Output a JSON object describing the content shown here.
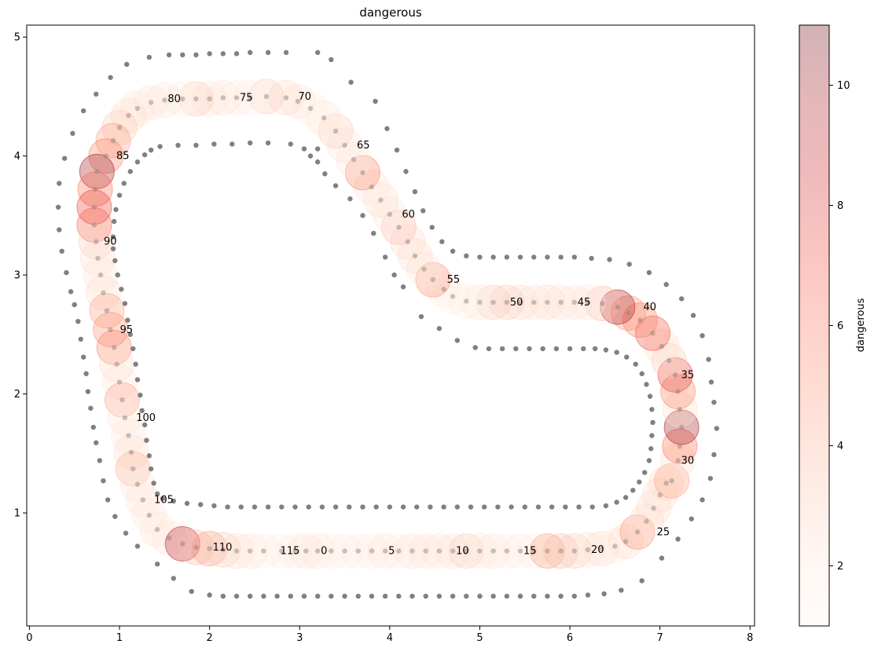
{
  "chart_data": {
    "type": "scatter",
    "title": "dangerous",
    "xlabel": "",
    "ylabel": "",
    "xlim": [
      -0.03,
      8.05
    ],
    "ylim": [
      0.05,
      5.1
    ],
    "xticks": [
      0,
      1,
      2,
      3,
      4,
      5,
      6,
      7,
      8
    ],
    "yticks": [
      1,
      2,
      3,
      4,
      5
    ],
    "grid": false,
    "colorbar": {
      "label": "dangerous",
      "min": 1,
      "max": 11,
      "ticks": [
        2,
        4,
        6,
        8,
        10
      ],
      "colormap": "Reds",
      "alpha": 0.3
    },
    "track_border_color": "#808080",
    "outer_border": [
      [
        3.2,
        4.87
      ],
      [
        2.85,
        4.87
      ],
      [
        2.65,
        4.87
      ],
      [
        2.45,
        4.87
      ],
      [
        2.3,
        4.86
      ],
      [
        2.15,
        4.86
      ],
      [
        2.0,
        4.86
      ],
      [
        1.85,
        4.85
      ],
      [
        1.7,
        4.85
      ],
      [
        1.55,
        4.85
      ],
      [
        1.33,
        4.83
      ],
      [
        1.08,
        4.77
      ],
      [
        0.9,
        4.66
      ],
      [
        0.74,
        4.52
      ],
      [
        0.6,
        4.38
      ],
      [
        0.48,
        4.19
      ],
      [
        0.39,
        3.98
      ],
      [
        0.33,
        3.77
      ],
      [
        0.32,
        3.57
      ],
      [
        0.33,
        3.38
      ],
      [
        0.36,
        3.2
      ],
      [
        0.41,
        3.02
      ],
      [
        0.46,
        2.86
      ],
      [
        0.5,
        2.75
      ],
      [
        0.54,
        2.61
      ],
      [
        0.57,
        2.46
      ],
      [
        0.6,
        2.31
      ],
      [
        0.63,
        2.17
      ],
      [
        0.65,
        2.02
      ],
      [
        0.68,
        1.88
      ],
      [
        0.71,
        1.72
      ],
      [
        0.74,
        1.59
      ],
      [
        0.78,
        1.44
      ],
      [
        0.82,
        1.27
      ],
      [
        0.87,
        1.11
      ],
      [
        0.95,
        0.97
      ],
      [
        1.07,
        0.83
      ],
      [
        1.2,
        0.72
      ],
      [
        1.42,
        0.57
      ],
      [
        1.6,
        0.45
      ],
      [
        1.8,
        0.34
      ],
      [
        2.0,
        0.31
      ],
      [
        2.15,
        0.3
      ],
      [
        2.3,
        0.3
      ],
      [
        2.45,
        0.3
      ],
      [
        2.6,
        0.3
      ],
      [
        2.75,
        0.3
      ],
      [
        2.9,
        0.3
      ],
      [
        3.05,
        0.3
      ],
      [
        3.2,
        0.3
      ],
      [
        3.35,
        0.3
      ],
      [
        3.5,
        0.3
      ],
      [
        3.65,
        0.3
      ],
      [
        3.8,
        0.3
      ],
      [
        3.95,
        0.3
      ],
      [
        4.1,
        0.3
      ],
      [
        4.25,
        0.3
      ],
      [
        4.4,
        0.3
      ],
      [
        4.55,
        0.3
      ],
      [
        4.7,
        0.3
      ],
      [
        4.85,
        0.3
      ],
      [
        5.0,
        0.3
      ],
      [
        5.15,
        0.3
      ],
      [
        5.3,
        0.3
      ],
      [
        5.45,
        0.3
      ],
      [
        5.6,
        0.3
      ],
      [
        5.75,
        0.3
      ],
      [
        5.9,
        0.3
      ],
      [
        6.05,
        0.3
      ],
      [
        6.2,
        0.31
      ],
      [
        6.38,
        0.32
      ],
      [
        6.57,
        0.35
      ],
      [
        6.8,
        0.43
      ],
      [
        7.02,
        0.62
      ],
      [
        7.2,
        0.78
      ],
      [
        7.35,
        0.95
      ],
      [
        7.47,
        1.11
      ],
      [
        7.56,
        1.29
      ],
      [
        7.6,
        1.49
      ],
      [
        7.63,
        1.71
      ],
      [
        7.6,
        1.93
      ],
      [
        7.57,
        2.1
      ],
      [
        7.54,
        2.29
      ],
      [
        7.47,
        2.49
      ],
      [
        7.37,
        2.66
      ],
      [
        7.24,
        2.8
      ],
      [
        7.07,
        2.92
      ],
      [
        6.88,
        3.02
      ],
      [
        6.66,
        3.09
      ],
      [
        6.44,
        3.13
      ],
      [
        6.24,
        3.14
      ],
      [
        6.05,
        3.15
      ],
      [
        5.9,
        3.15
      ],
      [
        5.75,
        3.15
      ],
      [
        5.6,
        3.15
      ],
      [
        5.45,
        3.15
      ],
      [
        5.3,
        3.15
      ],
      [
        5.15,
        3.15
      ],
      [
        5.0,
        3.15
      ],
      [
        4.85,
        3.16
      ],
      [
        4.7,
        3.2
      ],
      [
        4.58,
        3.28
      ],
      [
        4.47,
        3.4
      ],
      [
        4.37,
        3.54
      ],
      [
        4.28,
        3.7
      ],
      [
        4.18,
        3.87
      ],
      [
        4.08,
        4.05
      ],
      [
        3.97,
        4.23
      ],
      [
        3.84,
        4.46
      ],
      [
        3.57,
        4.62
      ],
      [
        3.35,
        4.81
      ]
    ],
    "inner_border": [
      [
        3.2,
        4.06
      ],
      [
        2.9,
        4.1
      ],
      [
        2.65,
        4.11
      ],
      [
        2.45,
        4.11
      ],
      [
        2.25,
        4.1
      ],
      [
        2.05,
        4.1
      ],
      [
        1.85,
        4.09
      ],
      [
        1.65,
        4.09
      ],
      [
        1.45,
        4.08
      ],
      [
        1.35,
        4.05
      ],
      [
        1.28,
        4.01
      ],
      [
        1.2,
        3.95
      ],
      [
        1.12,
        3.87
      ],
      [
        1.05,
        3.77
      ],
      [
        1.0,
        3.67
      ],
      [
        0.96,
        3.55
      ],
      [
        0.94,
        3.45
      ],
      [
        0.93,
        3.32
      ],
      [
        0.93,
        3.22
      ],
      [
        0.95,
        3.12
      ],
      [
        0.98,
        3.0
      ],
      [
        1.02,
        2.88
      ],
      [
        1.06,
        2.76
      ],
      [
        1.09,
        2.62
      ],
      [
        1.12,
        2.5
      ],
      [
        1.15,
        2.38
      ],
      [
        1.18,
        2.25
      ],
      [
        1.2,
        2.12
      ],
      [
        1.23,
        1.99
      ],
      [
        1.25,
        1.86
      ],
      [
        1.28,
        1.74
      ],
      [
        1.3,
        1.61
      ],
      [
        1.33,
        1.48
      ],
      [
        1.35,
        1.37
      ],
      [
        1.38,
        1.25
      ],
      [
        1.42,
        1.16
      ],
      [
        1.48,
        1.12
      ],
      [
        1.6,
        1.1
      ],
      [
        1.75,
        1.08
      ],
      [
        1.9,
        1.07
      ],
      [
        2.05,
        1.06
      ],
      [
        2.2,
        1.05
      ],
      [
        2.35,
        1.05
      ],
      [
        2.5,
        1.05
      ],
      [
        2.65,
        1.05
      ],
      [
        2.8,
        1.05
      ],
      [
        2.95,
        1.05
      ],
      [
        3.1,
        1.05
      ],
      [
        3.25,
        1.05
      ],
      [
        3.4,
        1.05
      ],
      [
        3.55,
        1.05
      ],
      [
        3.7,
        1.05
      ],
      [
        3.85,
        1.05
      ],
      [
        4.0,
        1.05
      ],
      [
        4.15,
        1.05
      ],
      [
        4.3,
        1.05
      ],
      [
        4.45,
        1.05
      ],
      [
        4.6,
        1.05
      ],
      [
        4.75,
        1.05
      ],
      [
        4.9,
        1.05
      ],
      [
        5.05,
        1.05
      ],
      [
        5.2,
        1.05
      ],
      [
        5.35,
        1.05
      ],
      [
        5.5,
        1.05
      ],
      [
        5.65,
        1.05
      ],
      [
        5.8,
        1.05
      ],
      [
        5.95,
        1.05
      ],
      [
        6.1,
        1.05
      ],
      [
        6.25,
        1.05
      ],
      [
        6.4,
        1.06
      ],
      [
        6.52,
        1.09
      ],
      [
        6.62,
        1.13
      ],
      [
        6.7,
        1.19
      ],
      [
        6.77,
        1.26
      ],
      [
        6.83,
        1.34
      ],
      [
        6.88,
        1.44
      ],
      [
        6.9,
        1.54
      ],
      [
        6.91,
        1.65
      ],
      [
        6.92,
        1.76
      ],
      [
        6.91,
        1.87
      ],
      [
        6.89,
        1.98
      ],
      [
        6.85,
        2.08
      ],
      [
        6.8,
        2.17
      ],
      [
        6.73,
        2.25
      ],
      [
        6.63,
        2.31
      ],
      [
        6.52,
        2.35
      ],
      [
        6.4,
        2.37
      ],
      [
        6.28,
        2.38
      ],
      [
        6.15,
        2.38
      ],
      [
        6.0,
        2.38
      ],
      [
        5.85,
        2.38
      ],
      [
        5.7,
        2.38
      ],
      [
        5.55,
        2.38
      ],
      [
        5.4,
        2.38
      ],
      [
        5.25,
        2.38
      ],
      [
        5.1,
        2.38
      ],
      [
        4.95,
        2.39
      ],
      [
        4.75,
        2.45
      ],
      [
        4.55,
        2.55
      ],
      [
        4.35,
        2.65
      ],
      [
        4.15,
        2.9
      ],
      [
        4.05,
        3.0
      ],
      [
        3.95,
        3.15
      ],
      [
        3.82,
        3.35
      ],
      [
        3.7,
        3.5
      ],
      [
        3.56,
        3.64
      ],
      [
        3.4,
        3.75
      ],
      [
        3.28,
        3.85
      ],
      [
        3.2,
        3.95
      ],
      [
        3.12,
        4.0
      ],
      [
        3.05,
        4.06
      ]
    ],
    "waypoints": [
      [
        3.2,
        0.68,
        2.0
      ],
      [
        3.35,
        0.68,
        1.5
      ],
      [
        3.5,
        0.68,
        1.5
      ],
      [
        3.65,
        0.68,
        1.5
      ],
      [
        3.8,
        0.68,
        1.5
      ],
      [
        3.95,
        0.68,
        2.0
      ],
      [
        4.1,
        0.68,
        1.5
      ],
      [
        4.25,
        0.68,
        2.0
      ],
      [
        4.4,
        0.68,
        2.0
      ],
      [
        4.55,
        0.68,
        2.0
      ],
      [
        4.7,
        0.68,
        2.0
      ],
      [
        4.85,
        0.68,
        3.0
      ],
      [
        5.0,
        0.68,
        2.0
      ],
      [
        5.15,
        0.68,
        2.0
      ],
      [
        5.3,
        0.68,
        1.5
      ],
      [
        5.45,
        0.68,
        1.5
      ],
      [
        5.6,
        0.68,
        1.5
      ],
      [
        5.75,
        0.68,
        4.5
      ],
      [
        5.9,
        0.68,
        3.5
      ],
      [
        6.05,
        0.68,
        3.0
      ],
      [
        6.2,
        0.69,
        2.0
      ],
      [
        6.35,
        0.7,
        2.5
      ],
      [
        6.5,
        0.72,
        1.5
      ],
      [
        6.62,
        0.76,
        2.5
      ],
      [
        6.75,
        0.84,
        5.0
      ],
      [
        6.85,
        0.93,
        2.5
      ],
      [
        6.93,
        1.04,
        2.5
      ],
      [
        7.0,
        1.15,
        2.5
      ],
      [
        7.07,
        1.25,
        2.5
      ],
      [
        7.13,
        1.27,
        4.5
      ],
      [
        7.2,
        1.44,
        2.5
      ],
      [
        7.22,
        1.56,
        6.0
      ],
      [
        7.24,
        1.72,
        10.0
      ],
      [
        7.22,
        1.87,
        2.5
      ],
      [
        7.2,
        2.02,
        5.5
      ],
      [
        7.17,
        2.16,
        7.5
      ],
      [
        7.1,
        2.28,
        3.0
      ],
      [
        7.02,
        2.4,
        2.5
      ],
      [
        6.92,
        2.51,
        7.0
      ],
      [
        6.78,
        2.62,
        5.5
      ],
      [
        6.65,
        2.68,
        5.0
      ],
      [
        6.53,
        2.73,
        9.5
      ],
      [
        6.36,
        2.76,
        3.5
      ],
      [
        6.2,
        2.77,
        2.0
      ],
      [
        6.05,
        2.77,
        2.0
      ],
      [
        5.9,
        2.77,
        2.0
      ],
      [
        5.75,
        2.77,
        2.5
      ],
      [
        5.6,
        2.77,
        2.0
      ],
      [
        5.45,
        2.77,
        2.5
      ],
      [
        5.3,
        2.77,
        3.0
      ],
      [
        5.15,
        2.77,
        3.0
      ],
      [
        5.0,
        2.77,
        2.0
      ],
      [
        4.85,
        2.78,
        1.5
      ],
      [
        4.7,
        2.82,
        1.5
      ],
      [
        4.6,
        2.88,
        1.5
      ],
      [
        4.48,
        2.96,
        5.0
      ],
      [
        4.38,
        3.05,
        2.0
      ],
      [
        4.28,
        3.16,
        2.5
      ],
      [
        4.2,
        3.28,
        2.5
      ],
      [
        4.1,
        3.4,
        3.5
      ],
      [
        4.0,
        3.51,
        2.0
      ],
      [
        3.9,
        3.63,
        2.5
      ],
      [
        3.8,
        3.74,
        2.0
      ],
      [
        3.7,
        3.86,
        5.5
      ],
      [
        3.6,
        3.97,
        2.0
      ],
      [
        3.5,
        4.09,
        2.0
      ],
      [
        3.4,
        4.21,
        3.0
      ],
      [
        3.27,
        4.32,
        2.0
      ],
      [
        3.12,
        4.4,
        1.5
      ],
      [
        2.98,
        4.46,
        2.0
      ],
      [
        2.85,
        4.49,
        2.5
      ],
      [
        2.63,
        4.5,
        3.0
      ],
      [
        2.45,
        4.49,
        1.5
      ],
      [
        2.3,
        4.49,
        1.5
      ],
      [
        2.15,
        4.49,
        2.0
      ],
      [
        2.0,
        4.48,
        2.0
      ],
      [
        1.85,
        4.48,
        3.0
      ],
      [
        1.7,
        4.48,
        1.5
      ],
      [
        1.5,
        4.47,
        2.0
      ],
      [
        1.35,
        4.45,
        2.0
      ],
      [
        1.2,
        4.4,
        2.0
      ],
      [
        1.1,
        4.34,
        2.5
      ],
      [
        1.0,
        4.24,
        3.0
      ],
      [
        0.93,
        4.13,
        4.5
      ],
      [
        0.85,
        4.0,
        5.5
      ],
      [
        0.75,
        3.87,
        10.0
      ],
      [
        0.73,
        3.72,
        6.0
      ],
      [
        0.72,
        3.57,
        7.5
      ],
      [
        0.72,
        3.42,
        6.5
      ],
      [
        0.74,
        3.28,
        3.0
      ],
      [
        0.76,
        3.14,
        2.5
      ],
      [
        0.79,
        3.0,
        2.0
      ],
      [
        0.82,
        2.85,
        2.5
      ],
      [
        0.86,
        2.7,
        4.5
      ],
      [
        0.9,
        2.54,
        5.0
      ],
      [
        0.94,
        2.39,
        5.5
      ],
      [
        0.97,
        2.25,
        2.5
      ],
      [
        1.0,
        2.1,
        2.0
      ],
      [
        1.03,
        1.95,
        4.5
      ],
      [
        1.06,
        1.8,
        2.0
      ],
      [
        1.1,
        1.65,
        2.0
      ],
      [
        1.13,
        1.51,
        2.5
      ],
      [
        1.15,
        1.37,
        4.0
      ],
      [
        1.2,
        1.24,
        2.0
      ],
      [
        1.26,
        1.11,
        2.0
      ],
      [
        1.33,
        0.98,
        2.0
      ],
      [
        1.42,
        0.86,
        2.0
      ],
      [
        1.55,
        0.79,
        2.0
      ],
      [
        1.7,
        0.74,
        9.0
      ],
      [
        1.85,
        0.71,
        3.5
      ],
      [
        2.0,
        0.7,
        4.5
      ],
      [
        2.15,
        0.69,
        3.0
      ],
      [
        2.3,
        0.68,
        2.5
      ],
      [
        2.45,
        0.68,
        2.0
      ],
      [
        2.6,
        0.68,
        1.5
      ],
      [
        2.8,
        0.68,
        1.5
      ],
      [
        2.95,
        0.68,
        1.5
      ],
      [
        3.07,
        0.68,
        2.0
      ]
    ],
    "waypoint_labels": [
      {
        "text": "0",
        "x": 3.2,
        "y": 0.68
      },
      {
        "text": "5",
        "x": 3.95,
        "y": 0.68
      },
      {
        "text": "10",
        "x": 4.7,
        "y": 0.68
      },
      {
        "text": "15",
        "x": 5.45,
        "y": 0.68
      },
      {
        "text": "20",
        "x": 6.2,
        "y": 0.69
      },
      {
        "text": "25",
        "x": 6.93,
        "y": 0.84
      },
      {
        "text": "30",
        "x": 7.2,
        "y": 1.44
      },
      {
        "text": "35",
        "x": 7.2,
        "y": 2.16
      },
      {
        "text": "40",
        "x": 6.78,
        "y": 2.73
      },
      {
        "text": "45",
        "x": 6.05,
        "y": 2.77
      },
      {
        "text": "50",
        "x": 5.3,
        "y": 2.77
      },
      {
        "text": "55",
        "x": 4.6,
        "y": 2.96
      },
      {
        "text": "60",
        "x": 4.1,
        "y": 3.51
      },
      {
        "text": "65",
        "x": 3.6,
        "y": 4.09
      },
      {
        "text": "70",
        "x": 2.95,
        "y": 4.5
      },
      {
        "text": "75",
        "x": 2.3,
        "y": 4.49
      },
      {
        "text": "80",
        "x": 1.5,
        "y": 4.48
      },
      {
        "text": "85",
        "x": 0.93,
        "y": 4.0
      },
      {
        "text": "90",
        "x": 0.79,
        "y": 3.28
      },
      {
        "text": "95",
        "x": 0.97,
        "y": 2.54
      },
      {
        "text": "100",
        "x": 1.15,
        "y": 1.8
      },
      {
        "text": "105",
        "x": 1.35,
        "y": 1.11
      },
      {
        "text": "110",
        "x": 2.0,
        "y": 0.71
      },
      {
        "text": "115",
        "x": 2.75,
        "y": 0.68
      }
    ]
  }
}
